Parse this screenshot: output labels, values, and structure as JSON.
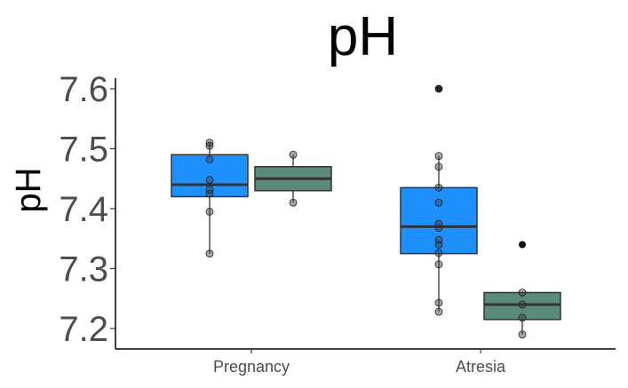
{
  "chart_data": {
    "type": "boxplot",
    "title": "pH",
    "ylabel": "pH",
    "xlabel": "",
    "ylim": [
      7.17,
      7.62
    ],
    "yticks": [
      "7.2",
      "7.3",
      "7.4",
      "7.5",
      "7.6"
    ],
    "ytick_values": [
      7.2,
      7.3,
      7.4,
      7.5,
      7.6
    ],
    "categories": [
      "Pregnancy",
      "Atresia"
    ],
    "grid": false,
    "legend": "none",
    "series_colors": [
      "#1e90ff",
      "#5a8a78"
    ],
    "boxes": [
      {
        "category": "Pregnancy",
        "group": 0,
        "whisker_low": 7.325,
        "q1": 7.42,
        "median": 7.44,
        "q3": 7.49,
        "whisker_high": 7.512,
        "outliers": [],
        "points": [
          7.325,
          7.395,
          7.425,
          7.432,
          7.448,
          7.482,
          7.505,
          7.51
        ]
      },
      {
        "category": "Pregnancy",
        "group": 1,
        "whisker_low": 7.41,
        "q1": 7.43,
        "median": 7.45,
        "q3": 7.47,
        "whisker_high": 7.49,
        "outliers": [],
        "points": [
          7.41,
          7.49
        ]
      },
      {
        "category": "Atresia",
        "group": 0,
        "whisker_low": 7.228,
        "q1": 7.325,
        "median": 7.37,
        "q3": 7.435,
        "whisker_high": 7.488,
        "outliers": [
          7.6
        ],
        "points": [
          7.228,
          7.243,
          7.307,
          7.326,
          7.34,
          7.348,
          7.368,
          7.375,
          7.41,
          7.435,
          7.47,
          7.488,
          7.6
        ]
      },
      {
        "category": "Atresia",
        "group": 1,
        "whisker_low": 7.19,
        "q1": 7.215,
        "median": 7.24,
        "q3": 7.26,
        "whisker_high": 7.26,
        "outliers": [
          7.34
        ],
        "points": [
          7.19,
          7.218,
          7.24,
          7.26
        ]
      }
    ]
  }
}
